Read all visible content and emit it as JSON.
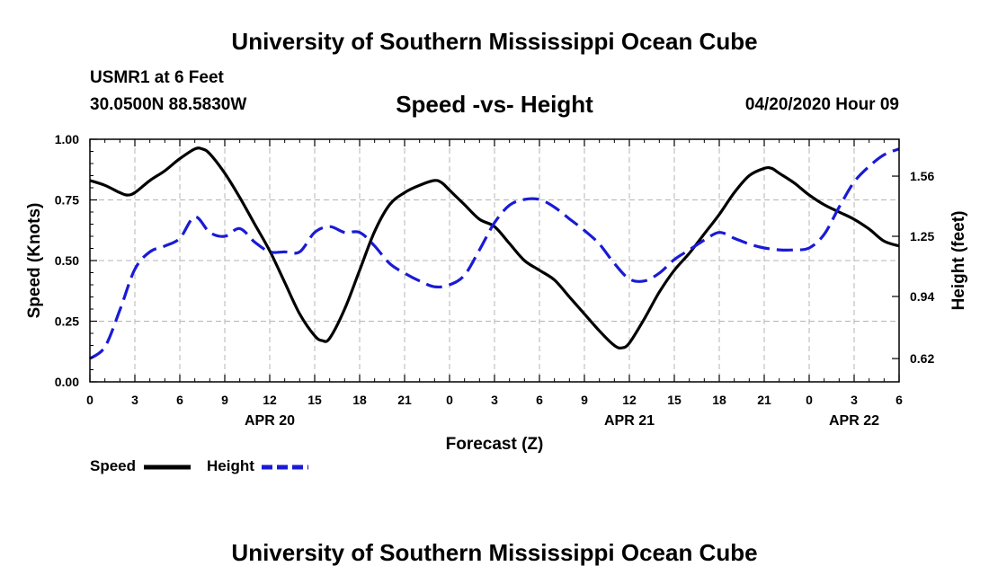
{
  "header": {
    "title": "University of Southern Mississippi Ocean Cube",
    "station": "USMR1 at 6 Feet",
    "coords": "30.0500N 88.5830W",
    "subtitle": "Speed -vs- Height",
    "datetime": "04/20/2020 Hour 09"
  },
  "footer": {
    "title": "University of Southern Mississippi Ocean Cube"
  },
  "legend": {
    "speed_label": "Speed",
    "height_label": "Height"
  },
  "colors": {
    "speed": "#000000",
    "height": "#1a1ad6",
    "grid": "#b4b4b4"
  },
  "chart_data": {
    "type": "line",
    "title": "Speed -vs- Height",
    "xlabel": "Forecast (Z)",
    "ylabel": "Speed (Knots)",
    "y2label": "Height (feet)",
    "xlim": [
      0,
      54
    ],
    "ylim": [
      0,
      1
    ],
    "y2lim": [
      0.5,
      1.75
    ],
    "x_ticks": [
      0,
      3,
      6,
      9,
      12,
      15,
      18,
      21,
      24,
      27,
      30,
      33,
      36,
      39,
      42,
      45,
      48,
      51,
      54
    ],
    "x_tick_labels": [
      "0",
      "3",
      "6",
      "9",
      "12",
      "15",
      "18",
      "21",
      "0",
      "3",
      "6",
      "9",
      "12",
      "15",
      "18",
      "21",
      "0",
      "3",
      "6"
    ],
    "date_labels": [
      {
        "x": 12,
        "label": "APR 20"
      },
      {
        "x": 36,
        "label": "APR 21"
      },
      {
        "x": 51,
        "label": "APR 22"
      }
    ],
    "y_ticks": [
      0,
      0.25,
      0.5,
      0.75,
      1.0
    ],
    "y_tick_labels": [
      "0.00",
      "0.25",
      "0.50",
      "0.75",
      "1.00"
    ],
    "y2_ticks": [
      0.62,
      0.94,
      1.25,
      1.56
    ],
    "y2_tick_labels": [
      "0.62",
      "0.94",
      "1.25",
      "1.56"
    ],
    "grid": true,
    "series": [
      {
        "name": "Speed",
        "axis": "left",
        "style": "solid",
        "x": [
          0,
          1,
          2,
          2.5,
          3,
          4,
          5,
          6,
          7,
          7.5,
          8,
          9,
          10,
          11,
          12,
          13,
          14,
          15,
          15.5,
          16,
          17,
          18,
          19,
          20,
          21,
          22,
          23,
          23.5,
          24,
          25,
          26,
          27,
          28,
          29,
          30,
          31,
          32,
          33,
          34,
          35,
          35.5,
          36,
          37,
          38,
          39,
          40,
          41,
          42,
          43,
          44,
          45,
          45.5,
          46,
          47,
          48,
          49,
          50,
          51,
          52,
          53,
          54
        ],
        "values": [
          0.83,
          0.81,
          0.78,
          0.77,
          0.78,
          0.83,
          0.87,
          0.92,
          0.96,
          0.96,
          0.94,
          0.86,
          0.76,
          0.65,
          0.54,
          0.41,
          0.28,
          0.19,
          0.17,
          0.18,
          0.3,
          0.46,
          0.62,
          0.73,
          0.78,
          0.81,
          0.83,
          0.82,
          0.79,
          0.73,
          0.67,
          0.64,
          0.57,
          0.5,
          0.46,
          0.42,
          0.35,
          0.28,
          0.21,
          0.15,
          0.14,
          0.16,
          0.26,
          0.37,
          0.46,
          0.53,
          0.61,
          0.69,
          0.78,
          0.85,
          0.88,
          0.88,
          0.86,
          0.82,
          0.77,
          0.73,
          0.7,
          0.67,
          0.63,
          0.58,
          0.56
        ]
      },
      {
        "name": "Height",
        "axis": "right",
        "style": "dashed",
        "x": [
          0,
          1,
          2,
          3,
          4,
          5,
          6,
          7,
          8,
          9,
          10,
          11,
          12,
          13,
          14,
          15,
          16,
          17,
          18,
          19,
          20,
          21,
          22,
          23,
          24,
          25,
          26,
          27,
          28,
          29,
          30,
          31,
          32,
          33,
          34,
          35,
          36,
          37,
          38,
          39,
          40,
          41,
          42,
          43,
          44,
          45,
          46,
          47,
          48,
          49,
          50,
          51,
          52,
          53,
          54
        ],
        "values": [
          0.62,
          0.68,
          0.87,
          1.08,
          1.17,
          1.2,
          1.24,
          1.35,
          1.27,
          1.25,
          1.29,
          1.22,
          1.17,
          1.17,
          1.17,
          1.27,
          1.3,
          1.27,
          1.27,
          1.2,
          1.11,
          1.06,
          1.02,
          0.99,
          1.0,
          1.05,
          1.18,
          1.32,
          1.41,
          1.44,
          1.44,
          1.4,
          1.34,
          1.28,
          1.21,
          1.11,
          1.03,
          1.02,
          1.06,
          1.13,
          1.18,
          1.23,
          1.27,
          1.24,
          1.21,
          1.19,
          1.18,
          1.18,
          1.19,
          1.26,
          1.4,
          1.53,
          1.61,
          1.67,
          1.7
        ]
      }
    ]
  }
}
